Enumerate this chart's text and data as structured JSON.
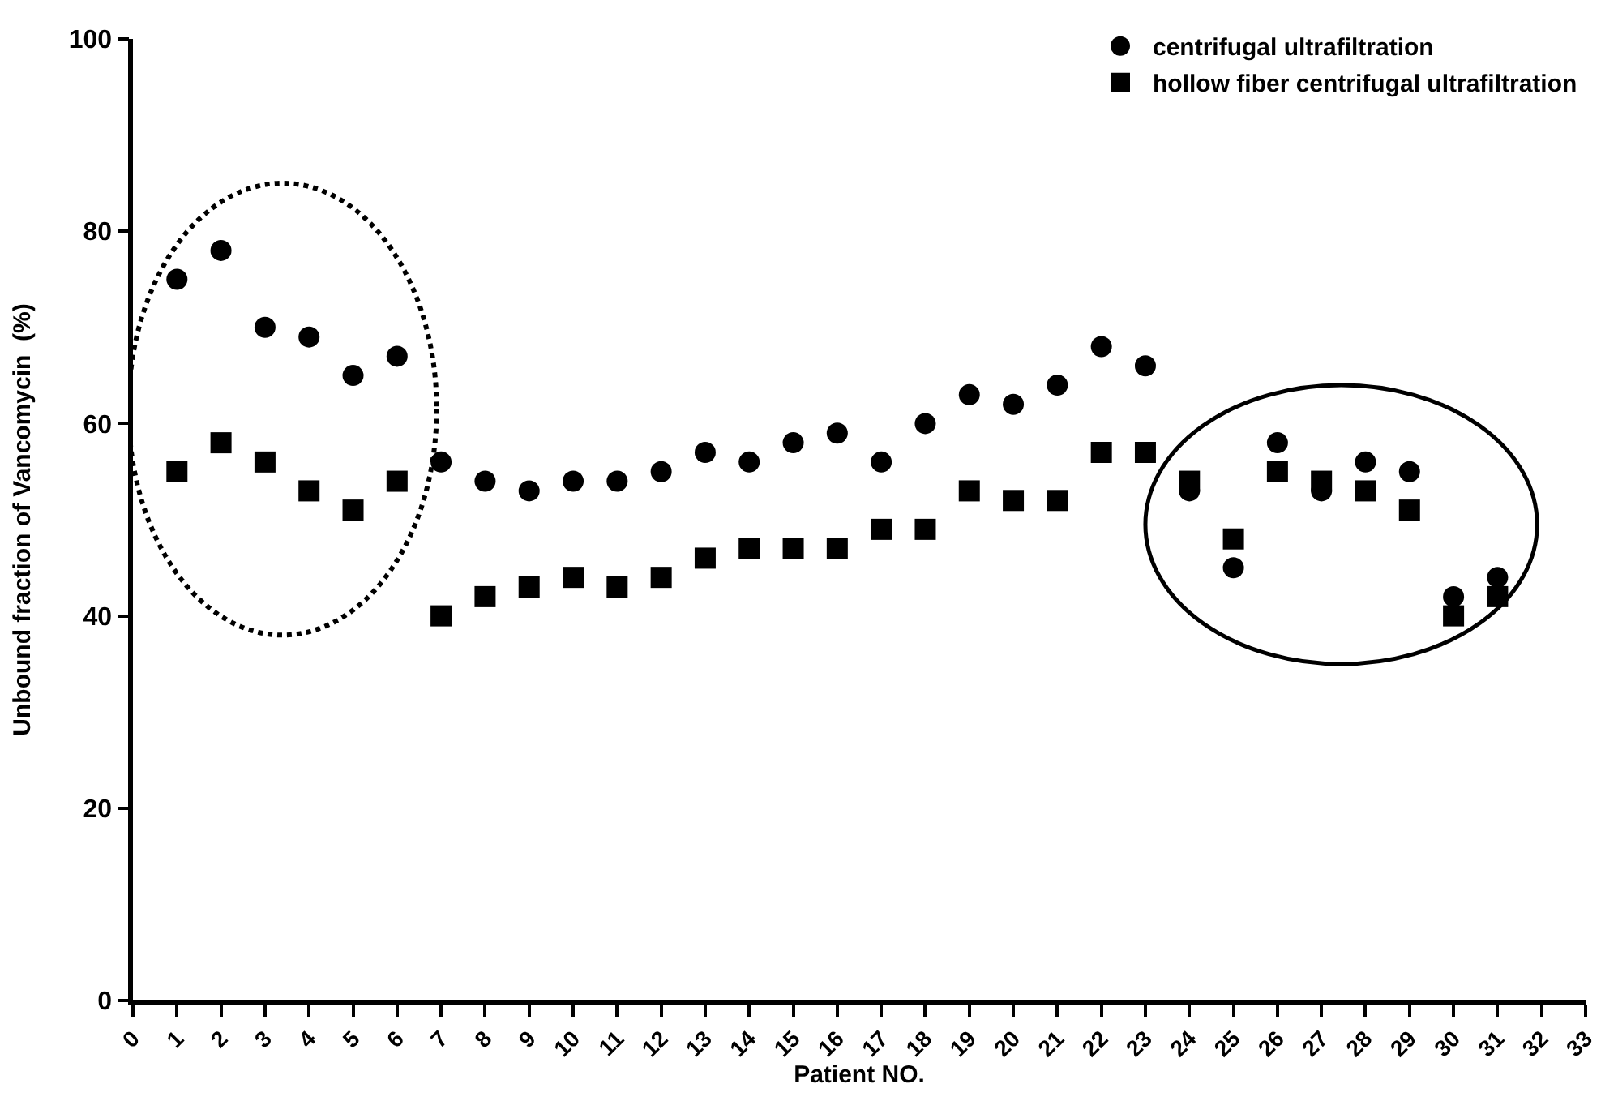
{
  "chart_data": {
    "type": "scatter",
    "xlabel": "Patient NO.",
    "ylabel": "Unbound fraction of Vancomycin  (%)",
    "x": [
      1,
      2,
      3,
      4,
      5,
      6,
      7,
      8,
      9,
      10,
      11,
      12,
      13,
      14,
      15,
      16,
      17,
      18,
      19,
      20,
      21,
      22,
      23,
      24,
      25,
      26,
      27,
      28,
      29,
      30,
      31
    ],
    "series": [
      {
        "name": "centrifugal ultrafiltration",
        "color": "#000000",
        "marker": "circle",
        "values": [
          75,
          78,
          70,
          69,
          65,
          67,
          56,
          54,
          53,
          54,
          54,
          55,
          57,
          56,
          58,
          59,
          56,
          60,
          63,
          62,
          64,
          68,
          66,
          53,
          45,
          58,
          53,
          56,
          55,
          42,
          44
        ]
      },
      {
        "name": "hollow fiber centrifugal ultrafiltration",
        "color": "#000000",
        "marker": "square",
        "values": [
          55,
          58,
          56,
          53,
          51,
          54,
          40,
          42,
          43,
          44,
          43,
          44,
          46,
          47,
          47,
          47,
          49,
          49,
          53,
          52,
          52,
          57,
          57,
          54,
          48,
          55,
          54,
          53,
          51,
          40,
          42
        ]
      }
    ],
    "xlim": [
      0,
      33
    ],
    "xticks": [
      0,
      1,
      2,
      3,
      4,
      5,
      6,
      7,
      8,
      9,
      10,
      11,
      12,
      13,
      14,
      15,
      16,
      17,
      18,
      19,
      20,
      21,
      22,
      23,
      24,
      25,
      26,
      27,
      28,
      29,
      30,
      31,
      32,
      33
    ],
    "ylim": [
      0,
      100
    ],
    "yticks": [
      0,
      20,
      40,
      60,
      80,
      100
    ],
    "legend": "top right"
  }
}
